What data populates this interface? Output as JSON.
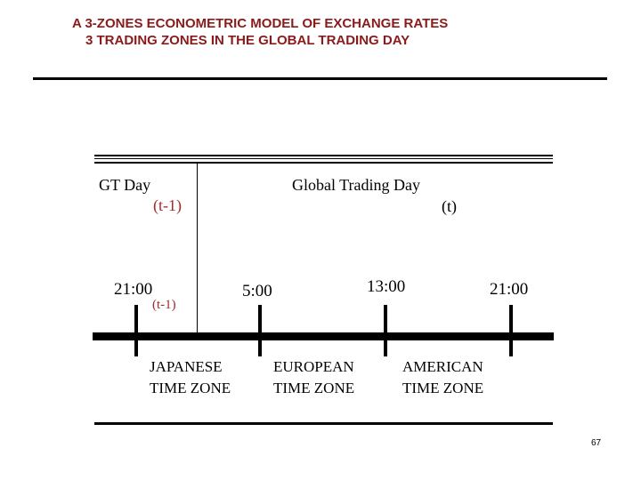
{
  "header": {
    "title_line1": "A 3-ZONES ECONOMETRIC MODEL OF EXCHANGE RATES",
    "title_line2": "3 TRADING ZONES IN THE GLOBAL TRADING DAY"
  },
  "diagram": {
    "gt_day_label": "GT Day",
    "gt_day_sub": "(t-1)",
    "global_day_label": "Global Trading Day",
    "global_day_sub": "(t)",
    "time_start": "21:00",
    "time_start_sub": "(t-1)",
    "time_jp_eu": "5:00",
    "time_eu_us": "13:00",
    "time_end": "21:00",
    "zones": [
      {
        "line1": "JAPANESE",
        "line2": "TIME ZONE"
      },
      {
        "line1": "EUROPEAN",
        "line2": "TIME ZONE"
      },
      {
        "line1": "AMERICAN",
        "line2": "TIME ZONE"
      }
    ]
  },
  "footer": {
    "page_number": "67"
  },
  "colors": {
    "title": "#8b1a1a",
    "accent": "#a52a2a",
    "text": "#000000"
  }
}
